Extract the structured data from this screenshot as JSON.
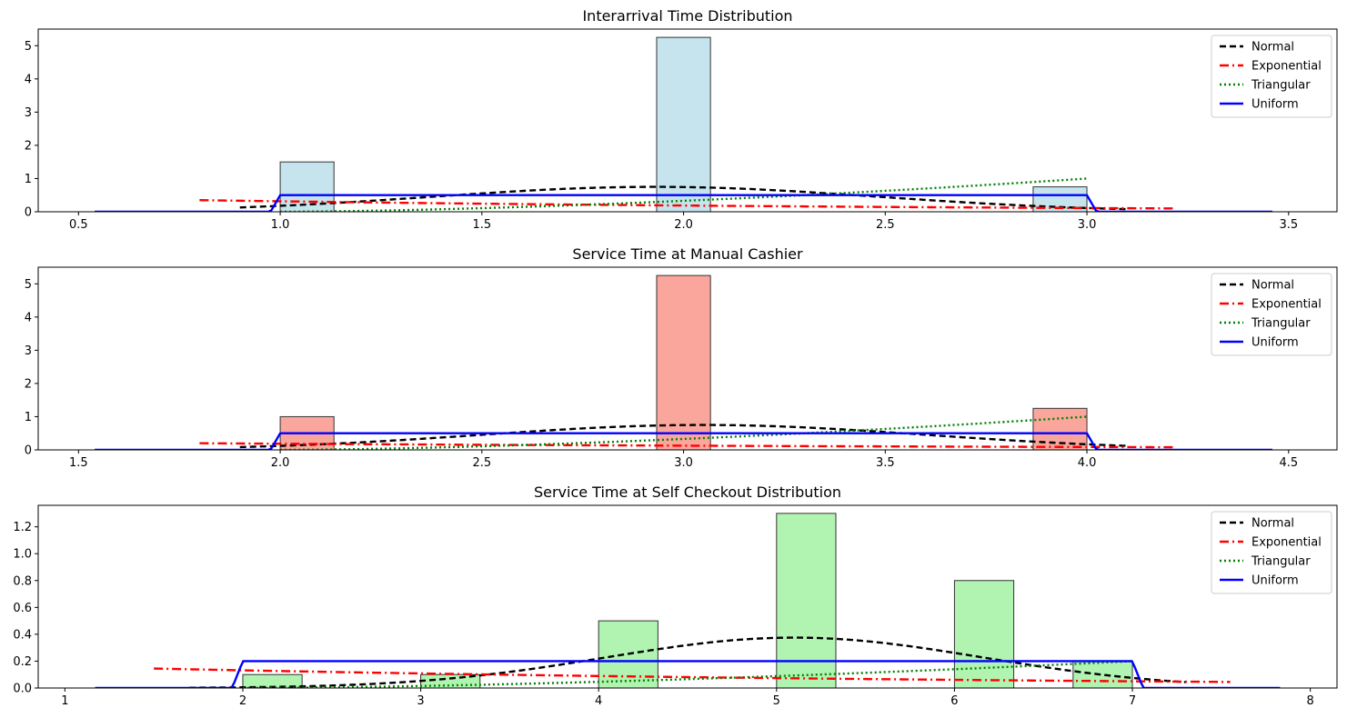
{
  "chart_data": [
    {
      "type": "bar",
      "title": "Interarrival Time Distribution",
      "xlabel": "",
      "ylabel": "",
      "xlim": [
        0.4,
        3.62
      ],
      "ylim": [
        0,
        5.5
      ],
      "xticks": [
        "0.5",
        "1.0",
        "1.5",
        "2.0",
        "2.5",
        "3.0",
        "3.5"
      ],
      "xtick_values": [
        0.5,
        1.0,
        1.5,
        2.0,
        2.5,
        3.0,
        3.5
      ],
      "yticks": [
        "0",
        "1",
        "2",
        "3",
        "4",
        "5"
      ],
      "ytick_values": [
        0,
        1,
        2,
        3,
        4,
        5
      ],
      "bar_color": "#add8e6",
      "bars": [
        {
          "x0": 1.0,
          "x1": 1.1333,
          "value": 1.5
        },
        {
          "x0": 1.9333,
          "x1": 2.0667,
          "value": 5.25
        },
        {
          "x0": 2.8667,
          "x1": 3.0,
          "value": 0.75
        }
      ],
      "series": [
        {
          "name": "Normal",
          "kind": "normal",
          "range": [
            0.9,
            3.1
          ],
          "mean": 1.93,
          "sd": 0.55
        },
        {
          "name": "Exponential",
          "kind": "exponential",
          "range": [
            0.8,
            3.22
          ],
          "a": 0.35,
          "b": 0.1
        },
        {
          "name": "Triangular",
          "kind": "triangular",
          "range": [
            1.0,
            3.0
          ],
          "low": 1.0,
          "high": 3.0,
          "peak": 1.0
        },
        {
          "name": "Uniform",
          "kind": "uniform",
          "range": [
            0.54,
            3.46
          ],
          "low": 1.0,
          "high": 3.0,
          "height": 0.5
        }
      ],
      "legend": {
        "placement": "upper right",
        "entries": [
          "Normal",
          "Exponential",
          "Triangular",
          "Uniform"
        ]
      },
      "grid": false
    },
    {
      "type": "bar",
      "title": "Service Time at Manual Cashier",
      "xlabel": "",
      "ylabel": "",
      "xlim": [
        1.4,
        4.62
      ],
      "ylim": [
        0,
        5.5
      ],
      "xticks": [
        "1.5",
        "2.0",
        "2.5",
        "3.0",
        "3.5",
        "4.0",
        "4.5"
      ],
      "xtick_values": [
        1.5,
        2.0,
        2.5,
        3.0,
        3.5,
        4.0,
        4.5
      ],
      "yticks": [
        "0",
        "1",
        "2",
        "3",
        "4",
        "5"
      ],
      "ytick_values": [
        0,
        1,
        2,
        3,
        4,
        5
      ],
      "bar_color": "#fa8072",
      "bars": [
        {
          "x0": 2.0,
          "x1": 2.1333,
          "value": 1.0
        },
        {
          "x0": 2.9333,
          "x1": 3.0667,
          "value": 5.25
        },
        {
          "x0": 3.8667,
          "x1": 4.0,
          "value": 1.25
        }
      ],
      "series": [
        {
          "name": "Normal",
          "kind": "normal",
          "range": [
            1.9,
            4.1
          ],
          "mean": 3.05,
          "sd": 0.55
        },
        {
          "name": "Exponential",
          "kind": "exponential",
          "range": [
            1.8,
            4.22
          ],
          "a": 0.2,
          "b": 0.08
        },
        {
          "name": "Triangular",
          "kind": "triangular",
          "range": [
            2.0,
            4.0
          ],
          "low": 2.0,
          "high": 4.0,
          "peak": 1.0
        },
        {
          "name": "Uniform",
          "kind": "uniform",
          "range": [
            1.54,
            4.46
          ],
          "low": 2.0,
          "high": 4.0,
          "height": 0.5
        }
      ],
      "legend": {
        "placement": "upper right",
        "entries": [
          "Normal",
          "Exponential",
          "Triangular",
          "Uniform"
        ]
      },
      "grid": false
    },
    {
      "type": "bar",
      "title": "Service Time at Self Checkout Distribution",
      "xlabel": "",
      "ylabel": "",
      "xlim": [
        0.85,
        8.15
      ],
      "ylim": [
        0,
        1.36
      ],
      "xticks": [
        "1",
        "2",
        "3",
        "4",
        "5",
        "6",
        "7",
        "8"
      ],
      "xtick_values": [
        1,
        2,
        3,
        4,
        5,
        6,
        7,
        8
      ],
      "yticks": [
        "0.0",
        "0.2",
        "0.4",
        "0.6",
        "0.8",
        "1.0",
        "1.2"
      ],
      "ytick_values": [
        0,
        0.2,
        0.4,
        0.6,
        0.8,
        1.0,
        1.2
      ],
      "bar_color": "#90ee90",
      "bars": [
        {
          "x0": 2.0,
          "x1": 2.3333,
          "value": 0.1
        },
        {
          "x0": 3.0,
          "x1": 3.3333,
          "value": 0.1
        },
        {
          "x0": 4.0,
          "x1": 4.3333,
          "value": 0.5
        },
        {
          "x0": 5.0,
          "x1": 5.3333,
          "value": 1.3
        },
        {
          "x0": 6.0,
          "x1": 6.3333,
          "value": 0.8
        },
        {
          "x0": 6.6667,
          "x1": 7.0,
          "value": 0.2
        }
      ],
      "series": [
        {
          "name": "Normal",
          "kind": "normal",
          "range": [
            1.7,
            7.3
          ],
          "mean": 5.1,
          "sd": 1.06
        },
        {
          "name": "Exponential",
          "kind": "exponential",
          "range": [
            1.5,
            7.55
          ],
          "a": 0.145,
          "b": 0.045
        },
        {
          "name": "Triangular",
          "kind": "triangular",
          "range": [
            2.0,
            7.0
          ],
          "low": 2.0,
          "high": 7.0,
          "peak": 0.2
        },
        {
          "name": "Uniform",
          "kind": "uniform",
          "range": [
            1.17,
            7.83
          ],
          "low": 2.0,
          "high": 7.0,
          "height": 0.2
        }
      ],
      "legend": {
        "placement": "upper right",
        "entries": [
          "Normal",
          "Exponential",
          "Triangular",
          "Uniform"
        ]
      },
      "grid": false
    }
  ],
  "styles": {
    "Normal": {
      "color": "#000000",
      "dash": "dashed"
    },
    "Exponential": {
      "color": "#ff0000",
      "dash": "dashdot"
    },
    "Triangular": {
      "color": "#008000",
      "dash": "dotted"
    },
    "Uniform": {
      "color": "#0000ff",
      "dash": "solid"
    },
    "bar_edge": "#333333",
    "bar_alpha": 0.7
  }
}
